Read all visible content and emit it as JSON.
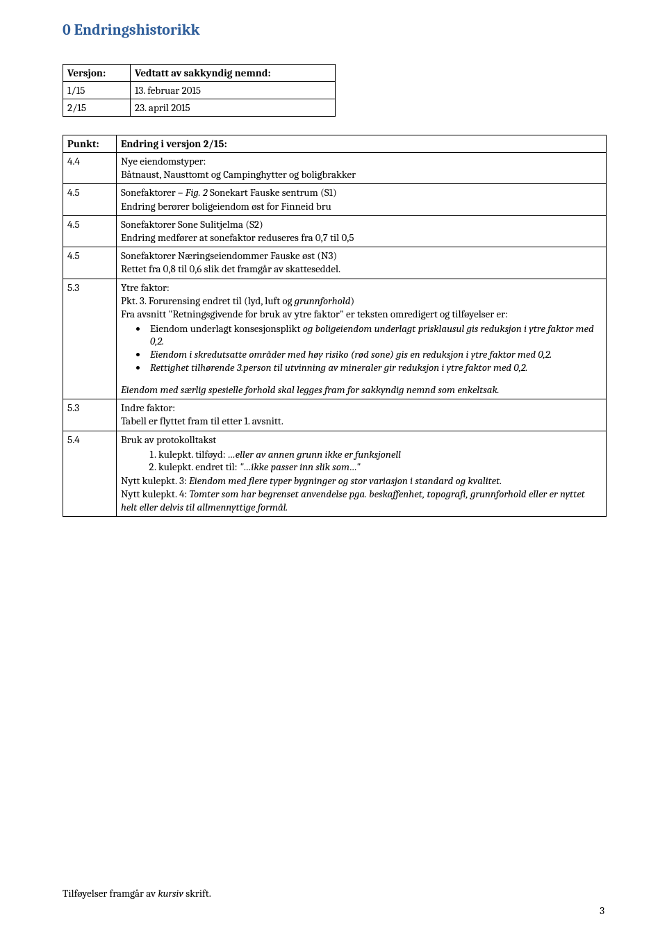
{
  "colors": {
    "heading": "#2e5d99",
    "text": "#000000",
    "border": "#000000",
    "background": "#ffffff"
  },
  "heading": "0 Endringshistorikk",
  "table1": {
    "header": {
      "col1": "Versjon:",
      "col2": "Vedtatt av sakkyndig nemnd:"
    },
    "rows": [
      {
        "c1": "1/15",
        "c2": "13. februar 2015"
      },
      {
        "c1": "2/15",
        "c2": "23. april 2015"
      }
    ]
  },
  "table2": {
    "header": {
      "col1": "Punkt:",
      "col2": "Endring i versjon 2/15:"
    },
    "r44": {
      "c1": "4.4",
      "line1": "Nye eiendomstyper:",
      "line2": "Båtnaust, Nausttomt og Campinghytter og boligbrakker"
    },
    "r45a": {
      "c1": "4.5",
      "line1_a": "Sonefaktorer – ",
      "line1_b": "Fig. 2",
      "line1_c": " Sonekart Fauske sentrum (S1)",
      "line2": "Endring berører boligeiendom øst for Finneid bru"
    },
    "r45b": {
      "c1": "4.5",
      "line1": "Sonefaktorer Sone Sulitjelma (S2)",
      "line2": "Endring medfører at sonefaktor reduseres fra 0,7 til 0,5"
    },
    "r45c": {
      "c1": "4.5",
      "line1": "Sonefaktorer Næringseiendommer Fauske øst (N3)",
      "line2": "Rettet fra 0,8 til 0,6 slik det framgår av skatteseddel."
    },
    "r53a": {
      "c1": "5.3",
      "line1": "Ytre faktor:",
      "line2_a": "Pkt. 3. Forurensing endret til (lyd, luft og ",
      "line2_b": "grunnforhold",
      "line2_c": ")",
      "line3": "Fra avsnitt \"Retningsgivende for bruk av ytre faktor\" er teksten omredigert og tilføyelser er:",
      "b1_a": "Eiendom underlagt konsesjonsplikt ",
      "b1_b": "og boligeiendom underlagt prisklausul gis reduksjon i ytre faktor med 0,2.",
      "b2": "Eiendom i skredutsatte områder med høy risiko (rød sone) gis en reduksjon i ytre faktor med 0,2.",
      "b3": "Rettighet tilhørende 3.person til utvinning av mineraler gir reduksjon i ytre faktor med 0,2.",
      "line4": "Eiendom med særlig spesielle forhold skal legges fram for sakkyndig nemnd som enkeltsak."
    },
    "r53b": {
      "c1": "5.3",
      "line1": "Indre faktor:",
      "line2": "Tabell er flyttet fram til etter 1. avsnitt."
    },
    "r54": {
      "c1": "5.4",
      "line1": "Bruk av protokolltakst",
      "n1_a": "kulepkt. tilføyd: ",
      "n1_b": "…eller av annen grunn ikke er funksjonell",
      "n2_a": "kulepkt. endret til: ",
      "n2_b": "\"…ikke passer inn slik som…\"",
      "nk3_a": "Nytt kulepkt. 3: ",
      "nk3_b": "Eiendom med flere typer bygninger og stor variasjon i standard og kvalitet.",
      "nk4_a": "Nytt kulepkt. 4: ",
      "nk4_b": "Tomter som har begrenset anvendelse pga. beskaffenhet, topografi, grunnforhold eller er nyttet helt eller delvis til allmennyttige formål."
    }
  },
  "footer_a": "Tilføyelser framgår av ",
  "footer_b": "kursiv",
  "footer_c": " skrift.",
  "page_no": "3"
}
